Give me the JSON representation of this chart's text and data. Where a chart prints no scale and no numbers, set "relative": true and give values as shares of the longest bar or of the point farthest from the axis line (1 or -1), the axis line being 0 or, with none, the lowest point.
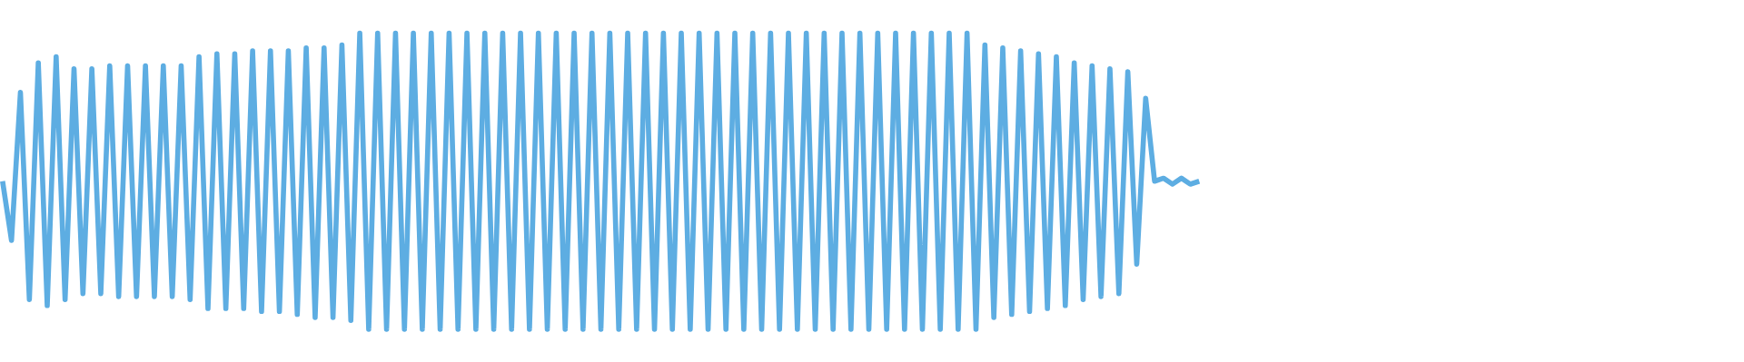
{
  "chart_data": {
    "type": "line",
    "relative": true,
    "categories": [
      null,
      null,
      null,
      null,
      null,
      null,
      null,
      null,
      null,
      null,
      null,
      null,
      null,
      null,
      null,
      null,
      null,
      null,
      null,
      null,
      null,
      null,
      null,
      null,
      null,
      null,
      null,
      null,
      null,
      null,
      null,
      null,
      null,
      null,
      null,
      null,
      null,
      null,
      null,
      null,
      null,
      null,
      null,
      null,
      null,
      null,
      null,
      null,
      null,
      null,
      null,
      null,
      null,
      null,
      null,
      null,
      null,
      null,
      null,
      null,
      null,
      null,
      null,
      null,
      null,
      null,
      null,
      null,
      null,
      null,
      null,
      null,
      null,
      null,
      null,
      null,
      null,
      null,
      null,
      null,
      null,
      null,
      null,
      null,
      null,
      null,
      null,
      null,
      null,
      null,
      null,
      null,
      null,
      null,
      null,
      null,
      null,
      null,
      null,
      null,
      null,
      null,
      null,
      null,
      null,
      null,
      null,
      null,
      null,
      null,
      null,
      null,
      null,
      null,
      null,
      null,
      null,
      null,
      null,
      null,
      null,
      null,
      null,
      null,
      null,
      null,
      null,
      null,
      null,
      null,
      null,
      null,
      null,
      null,
      null,
      null,
      null,
      null,
      null,
      null,
      null,
      null,
      null,
      null,
      null,
      null,
      null,
      null,
      null,
      null,
      null,
      null,
      null,
      null,
      null,
      null,
      null,
      null,
      null,
      null,
      null,
      null,
      null,
      null,
      null,
      null,
      null,
      null,
      null,
      null,
      null,
      null,
      null,
      null,
      null,
      null,
      null,
      null,
      null,
      null,
      null,
      null,
      null,
      null,
      null,
      null,
      null,
      null,
      null,
      null,
      null,
      null,
      null,
      null,
      null,
      null
    ],
    "series": [
      {
        "color": "#5dade2",
        "values": [
          0.5,
          0.3,
          0.8,
          0.1,
          0.9,
          0.08,
          0.92,
          0.1,
          0.88,
          0.12,
          0.88,
          0.12,
          0.89,
          0.11,
          0.89,
          0.11,
          0.89,
          0.11,
          0.89,
          0.11,
          0.89,
          0.1,
          0.92,
          0.07,
          0.93,
          0.07,
          0.93,
          0.07,
          0.94,
          0.06,
          0.94,
          0.06,
          0.94,
          0.05,
          0.95,
          0.04,
          0.95,
          0.04,
          0.96,
          0.03,
          1,
          0,
          1,
          0,
          1,
          0,
          1,
          0,
          1,
          0,
          1,
          0,
          1,
          0,
          1,
          0,
          1,
          0,
          1,
          0,
          1,
          0,
          1,
          0,
          1,
          0,
          1,
          0,
          1,
          0,
          1,
          0,
          1,
          0,
          1,
          0,
          1,
          0,
          1,
          0,
          1,
          0,
          1,
          0,
          1,
          0,
          1,
          0,
          1,
          0,
          1,
          0,
          1,
          0,
          1,
          0,
          1,
          0,
          1,
          0,
          1,
          0,
          1,
          0,
          1,
          0,
          1,
          0,
          1,
          0,
          0.96,
          0.04,
          0.95,
          0.05,
          0.94,
          0.06,
          0.93,
          0.07,
          0.92,
          0.08,
          0.9,
          0.1,
          0.89,
          0.11,
          0.88,
          0.12,
          0.87,
          0.22,
          0.78,
          0.5,
          0.51,
          0.49,
          0.51,
          0.49,
          0.5,
          null,
          null,
          null,
          null,
          null,
          null,
          null,
          null,
          null,
          null,
          null,
          null,
          null,
          null,
          null,
          null,
          null,
          null,
          null,
          null,
          null,
          null,
          null,
          null,
          null,
          null,
          null,
          null,
          null,
          null,
          null,
          null,
          null,
          null,
          null,
          null,
          null,
          null,
          null,
          null,
          null,
          null,
          null,
          null,
          null,
          null,
          null,
          null,
          null,
          null,
          null,
          null,
          null,
          null,
          null,
          null,
          null,
          null,
          null,
          null,
          null
        ]
      }
    ]
  }
}
